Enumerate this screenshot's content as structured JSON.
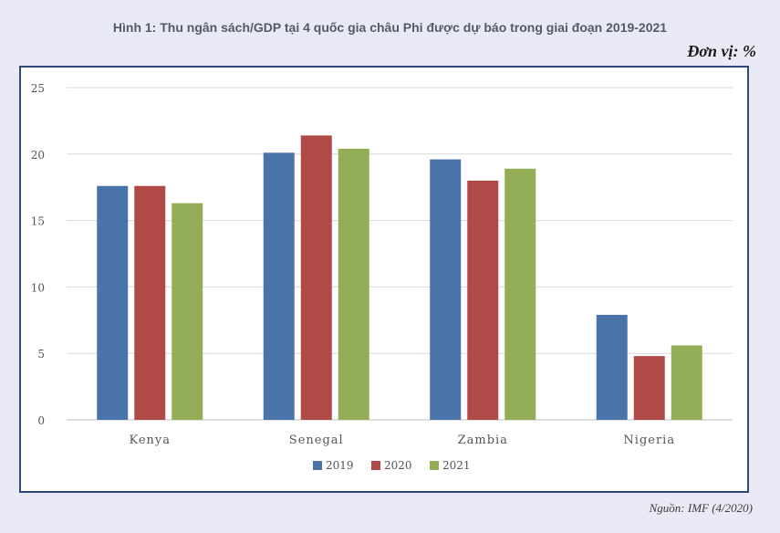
{
  "title": "Hình 1: Thu ngân sách/GDP tại 4 quốc gia châu Phi được dự báo trong giai đoạn 2019-2021",
  "unit": "Đơn vị: %",
  "source": "Nguồn: IMF (4/2020)",
  "chart_data": {
    "type": "bar",
    "categories": [
      "Kenya",
      "Senegal",
      "Zambia",
      "Nigeria"
    ],
    "series": [
      {
        "name": "2019",
        "color": "#4a73aa",
        "values": [
          17.6,
          20.1,
          19.6,
          7.9
        ]
      },
      {
        "name": "2020",
        "color": "#b04a47",
        "values": [
          17.6,
          21.4,
          18.0,
          4.8
        ]
      },
      {
        "name": "2021",
        "color": "#93ae56",
        "values": [
          16.3,
          20.4,
          18.9,
          5.6
        ]
      }
    ],
    "yticks": [
      "0",
      "5",
      "10",
      "15",
      "20",
      "25"
    ],
    "ylim": [
      0,
      25
    ],
    "grid": true,
    "legend": "bottom"
  }
}
